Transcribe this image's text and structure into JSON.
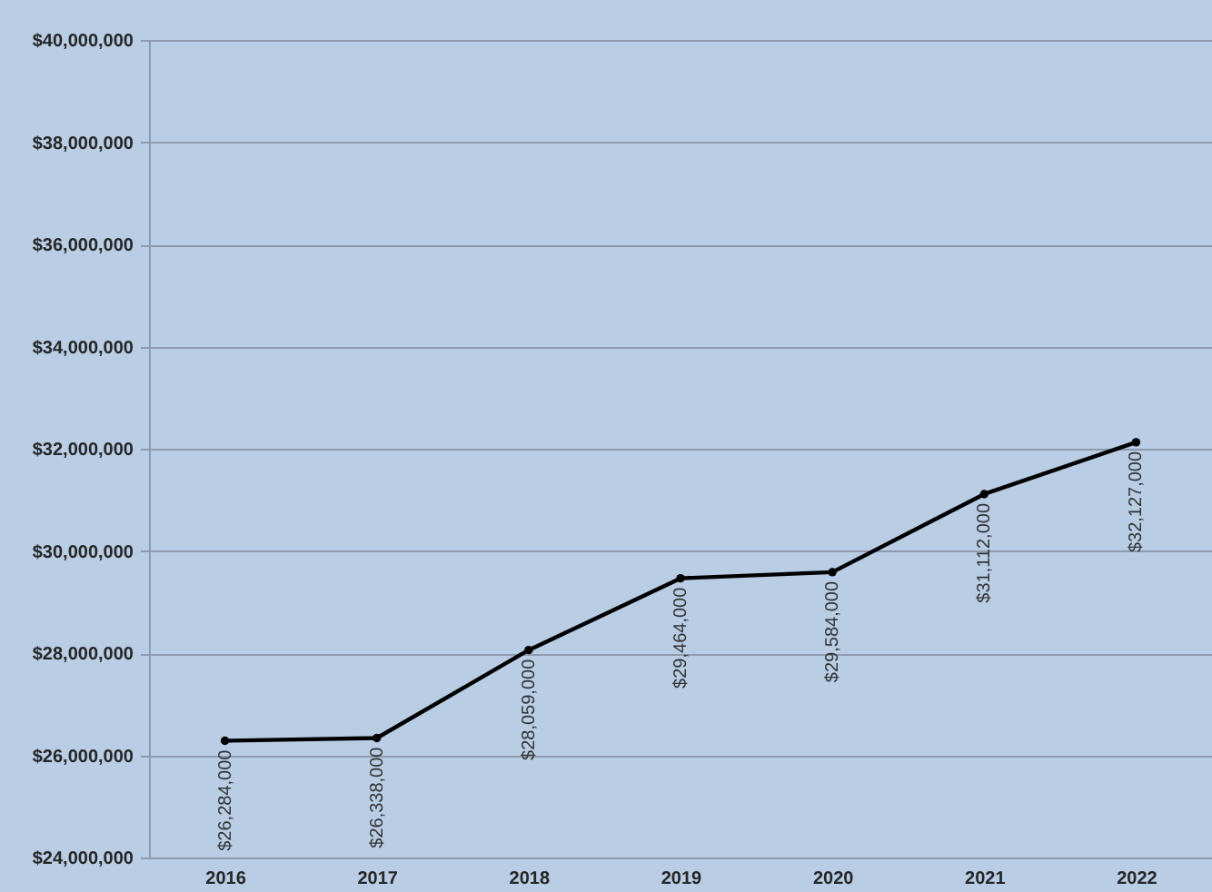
{
  "chart_data": {
    "type": "line",
    "categories": [
      "2016",
      "2017",
      "2018",
      "2019",
      "2020",
      "2021",
      "2022"
    ],
    "series": [
      {
        "color": "#000000",
        "values": [
          26284000,
          26338000,
          28059000,
          29464000,
          29584000,
          31112000,
          32127000
        ],
        "value_labels": [
          "$26,284,000",
          "$26,338,000",
          "$28,059,000",
          "$29,464,000",
          "$29,584,000",
          "$31,112,000",
          "$32,127,000"
        ]
      }
    ],
    "ylim": [
      24000000,
      40000000
    ],
    "yticks": [
      {
        "value": 24000000,
        "label": "$24,000,000"
      },
      {
        "value": 26000000,
        "label": "$26,000,000"
      },
      {
        "value": 28000000,
        "label": "$28,000,000"
      },
      {
        "value": 30000000,
        "label": "$30,000,000"
      },
      {
        "value": 32000000,
        "label": "$32,000,000"
      },
      {
        "value": 34000000,
        "label": "$34,000,000"
      },
      {
        "value": 36000000,
        "label": "$36,000,000"
      },
      {
        "value": 38000000,
        "label": "$38,000,000"
      },
      {
        "value": 40000000,
        "label": "$40,000,000"
      }
    ],
    "grid": "y",
    "marker": "circle",
    "line_style": "solid"
  }
}
